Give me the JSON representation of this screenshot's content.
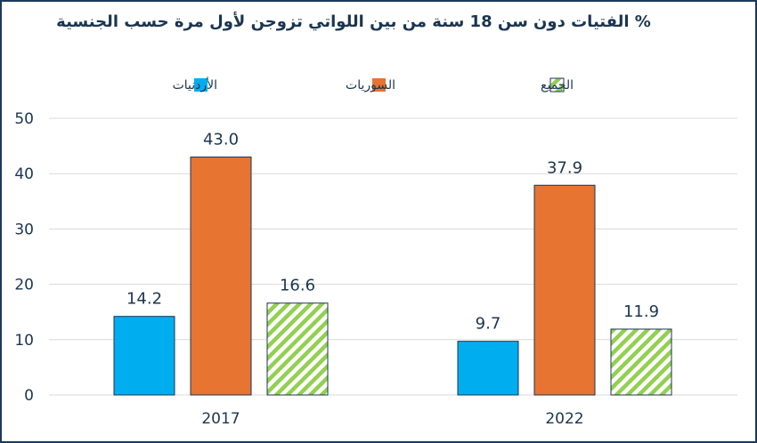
{
  "chart_data": {
    "type": "bar",
    "title": "% الفتيات دون سن 18 سنة من بين اللواتي تزوجن لأول مرة حسب الجنسية",
    "categories": [
      "2017",
      "2022"
    ],
    "series": [
      {
        "name": "الأردنيات",
        "values": [
          14.2,
          9.7
        ],
        "color": "#00aeef",
        "pattern": "solid"
      },
      {
        "name": "السوريات",
        "values": [
          43.0,
          37.9
        ],
        "color": "#e87431",
        "pattern": "solid"
      },
      {
        "name": "الجميع",
        "values": [
          16.6,
          11.9
        ],
        "color": "#92d050",
        "pattern": "diagonal-stripes"
      }
    ],
    "value_labels": [
      [
        "14.2",
        "9.7"
      ],
      [
        "43.0",
        "37.9"
      ],
      [
        "16.6",
        "11.9"
      ]
    ],
    "ylim": [
      0,
      50
    ],
    "yticks": [
      0,
      10,
      20,
      30,
      40,
      50
    ],
    "xlabel": "",
    "ylabel": "",
    "grid": true,
    "legend_position": "top"
  },
  "colors": {
    "frame": "#1b3a5c",
    "text": "#1b3550",
    "grid": "#d9d9d9",
    "bar_outline": "#1b3550"
  }
}
